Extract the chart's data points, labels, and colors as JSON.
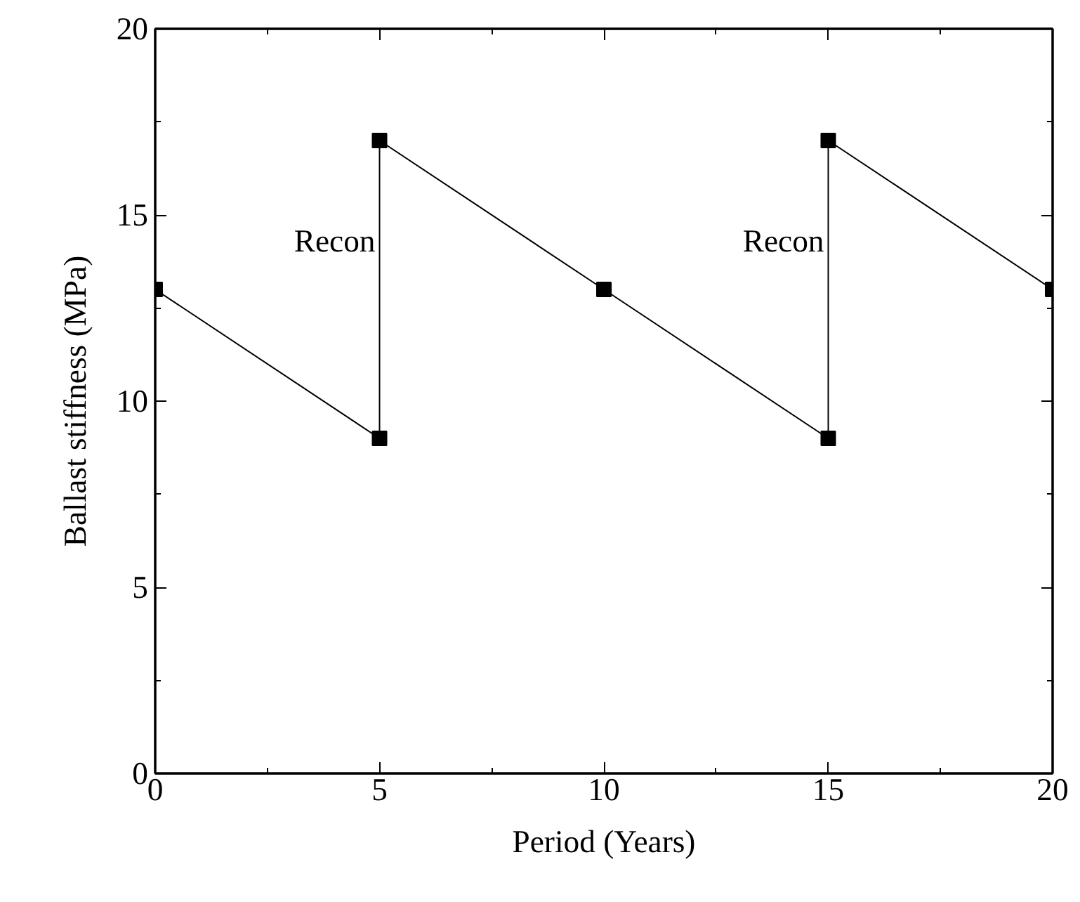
{
  "chart_data": {
    "type": "line",
    "xlabel": "Period (Years)",
    "ylabel": "Ballast stiffness (MPa)",
    "x": [
      0,
      5,
      5,
      10,
      15,
      15,
      20
    ],
    "series": [
      {
        "color": "#000000",
        "values": [
          13,
          9,
          17,
          13,
          9,
          17,
          13
        ]
      }
    ],
    "xlim": [
      0,
      20
    ],
    "ylim": [
      0,
      20
    ],
    "xticks": [
      0,
      5,
      10,
      15,
      20
    ],
    "yticks": [
      0,
      5,
      10,
      15,
      20
    ],
    "marker": "square",
    "line_style": "solid",
    "annotations": [
      {
        "text": "Recon",
        "x": 5,
        "y": 14.3
      },
      {
        "text": "Recon",
        "x": 15,
        "y": 14.3
      }
    ]
  }
}
